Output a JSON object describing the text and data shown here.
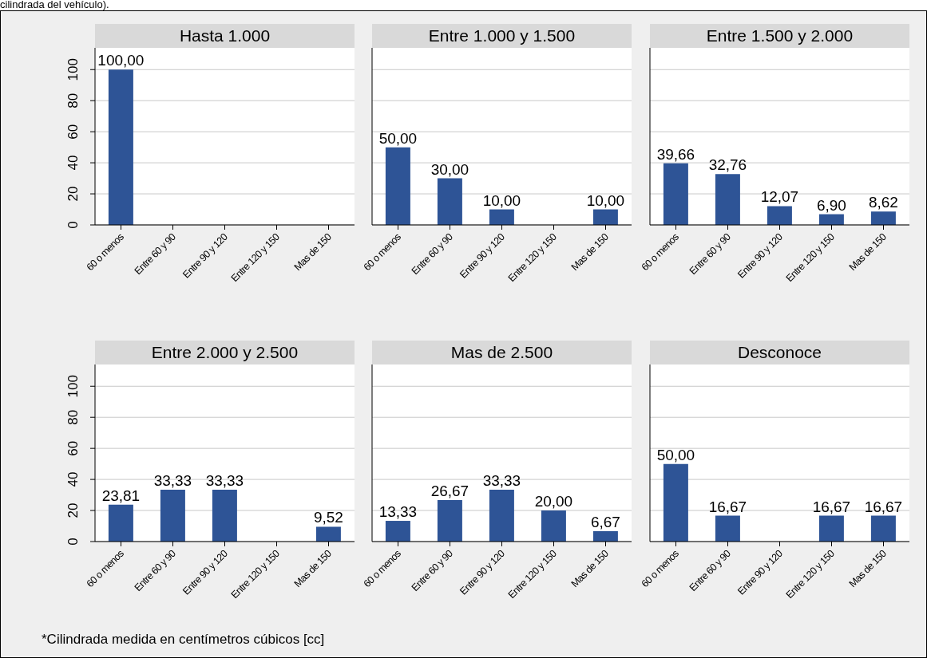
{
  "chart_data": [
    {
      "type": "bar",
      "title": "Hasta 1.000",
      "categories": [
        "60 o menos",
        "Entre 60 y 90",
        "Entre 90 y 120",
        "Entre 120 y 150",
        "Mas de 150"
      ],
      "values": [
        100,
        null,
        null,
        null,
        null
      ],
      "value_labels": [
        "100,00",
        null,
        null,
        null,
        null
      ],
      "color": "#2e5496",
      "ylim": [
        0,
        114
      ],
      "yticks": [
        0,
        20,
        40,
        60,
        80,
        100
      ],
      "grid": "y",
      "annotations": [
        "cilindrada del vehículo)."
      ]
    },
    {
      "type": "bar",
      "title": "Entre 1.000 y 1.500",
      "categories": [
        "60 o menos",
        "Entre 60 y 90",
        "Entre 90 y 120",
        "Entre 120 y 150",
        "Mas de 150"
      ],
      "values": [
        50,
        30,
        10,
        null,
        10
      ],
      "value_labels": [
        "50,00",
        "30,00",
        "10,00",
        null,
        "10,00"
      ],
      "color": "#2e5496",
      "ylim": [
        0,
        114
      ],
      "yticks": [
        0,
        20,
        40,
        60,
        80,
        100
      ],
      "grid": "y",
      "tick_labels": "x"
    },
    {
      "type": "bar",
      "title": "Entre 1.500 y 2.000",
      "categories": [
        "60 o menos",
        "Entre 60 y 90",
        "Entre 90 y 120",
        "Entre 120 y 150",
        "Mas de 150"
      ],
      "values": [
        39.66,
        32.76,
        12.07,
        6.9,
        8.62
      ],
      "value_labels": [
        "39,66",
        "32,76",
        "12,07",
        "6,90",
        "8,62"
      ],
      "color": "#2e5496",
      "ylim": [
        0,
        114
      ],
      "yticks": [
        0,
        20,
        40,
        60,
        80,
        100
      ],
      "grid": "y",
      "tick_labels": "x"
    },
    {
      "type": "bar",
      "title": "Entre 2.000 y 2.500",
      "categories": [
        "60 o menos",
        "Entre 60 y 90",
        "Entre 90 y 120",
        "Entre 120 y 150",
        "Mas de 150"
      ],
      "values": [
        23.81,
        33.33,
        33.33,
        null,
        9.52
      ],
      "value_labels": [
        "23,81",
        "33,33",
        "33,33",
        null,
        "9,52"
      ],
      "color": "#2e5496",
      "ylim": [
        0,
        114
      ],
      "yticks": [
        0,
        20,
        40,
        60,
        80,
        100
      ],
      "grid": "y",
      "annotations": [
        "*Cilindrada medida en centímetros cúbicos [cc]"
      ]
    },
    {
      "type": "bar",
      "title": "Mas de 2.500",
      "categories": [
        "60 o menos",
        "Entre 60 y 90",
        "Entre 90 y 120",
        "Entre 120 y 150",
        "Mas de 150"
      ],
      "values": [
        13.33,
        26.67,
        33.33,
        20,
        6.67
      ],
      "value_labels": [
        "13,33",
        "26,67",
        "33,33",
        "20,00",
        "6,67"
      ],
      "color": "#2e5496",
      "ylim": [
        0,
        114
      ],
      "yticks": [
        0,
        20,
        40,
        60,
        80,
        100
      ],
      "grid": "y",
      "tick_labels": "x"
    },
    {
      "type": "bar",
      "title": "Desconoce",
      "categories": [
        "60 o menos",
        "Entre 60 y 90",
        "Entre 90 y 120",
        "Entre 120 y 150",
        "Mas de 150"
      ],
      "values": [
        50,
        16.67,
        null,
        16.67,
        16.67
      ],
      "value_labels": [
        "50,00",
        "16,67",
        null,
        "16,67",
        "16,67"
      ],
      "color": "#2e5496",
      "ylim": [
        0,
        114
      ],
      "yticks": [
        0,
        20,
        40,
        60,
        80,
        100
      ],
      "grid": "y",
      "tick_labels": "x"
    }
  ]
}
